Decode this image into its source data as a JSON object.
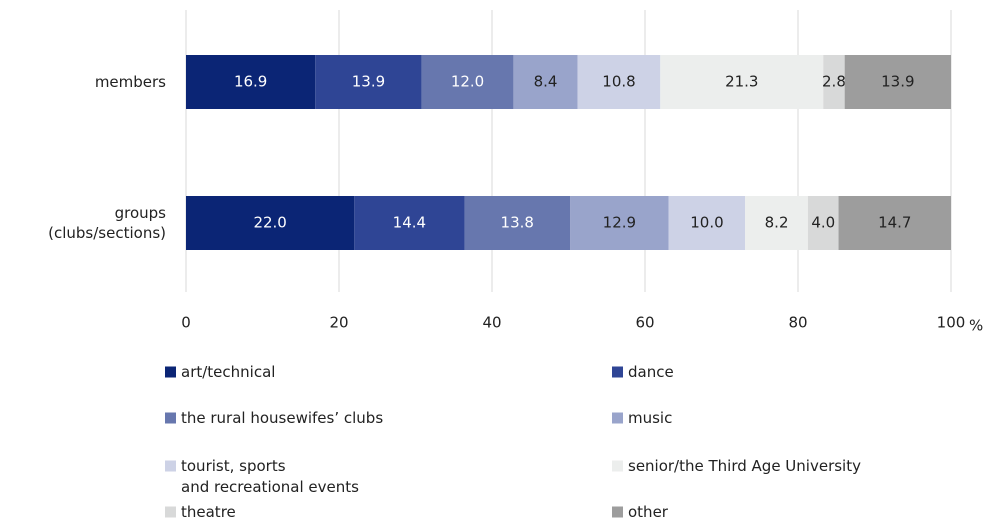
{
  "chart_data": {
    "type": "stacked_barh",
    "categories": [
      "members",
      "groups\n(clubs/sections)"
    ],
    "series": [
      {
        "name": "art/technical",
        "color": "#0b2575",
        "values": [
          16.9,
          22.0
        ],
        "value_labels": [
          "16.9",
          "22.0"
        ]
      },
      {
        "name": "dance",
        "color": "#2f4595",
        "values": [
          13.9,
          14.4
        ],
        "value_labels": [
          "13.9",
          "14.4"
        ]
      },
      {
        "name": "the rural housewifes’ clubs",
        "color": "#6777ae",
        "values": [
          12.0,
          13.8
        ],
        "value_labels": [
          "12.0",
          "13.8"
        ]
      },
      {
        "name": "music",
        "color": "#99a4cb",
        "values": [
          8.4,
          12.9
        ],
        "value_labels": [
          "8.4",
          "12.9"
        ]
      },
      {
        "name": "tourist, sports\nand recreational events",
        "color": "#cdd2e6",
        "values": [
          10.8,
          10.0
        ],
        "value_labels": [
          "10.8",
          "10.0"
        ]
      },
      {
        "name": "senior/the Third Age University",
        "color": "#eceeed",
        "values": [
          21.3,
          8.2
        ],
        "value_labels": [
          "21.3",
          "8.2"
        ]
      },
      {
        "name": "theatre",
        "color": "#d8d9d9",
        "values": [
          2.8,
          4.0
        ],
        "value_labels": [
          "2.8",
          "4.0"
        ]
      },
      {
        "name": "other",
        "color": "#9d9d9d",
        "values": [
          13.9,
          14.7
        ],
        "value_labels": [
          "13.9",
          "14.7"
        ]
      }
    ],
    "xlim": [
      0,
      100
    ],
    "xticks": [
      0,
      20,
      40,
      60,
      80,
      100
    ],
    "x_unit": "%",
    "grid": true
  }
}
